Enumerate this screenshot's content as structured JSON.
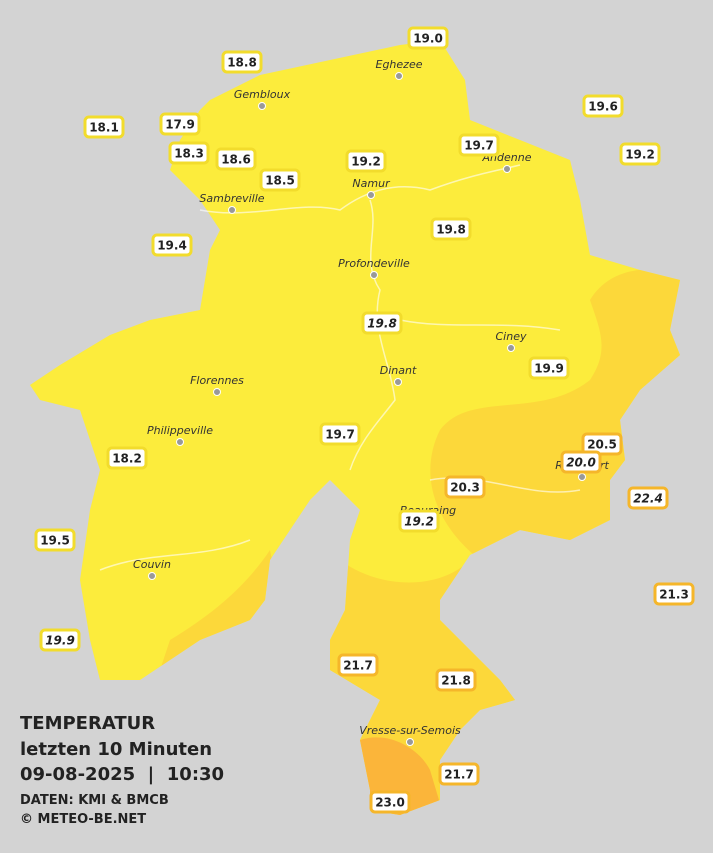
{
  "title": "TEMPERATUR",
  "subtitle": "letzten 10 Minuten",
  "datetime": "09-08-2025  |  10:30",
  "source": "DATEN: KMI & BMCB",
  "copyright": "© METEO-BE.NET",
  "towns": [
    "Eghezee",
    "Gembloux",
    "Andenne",
    "Namur",
    "Sambreville",
    "Profondeville",
    "Ciney",
    "Dinant",
    "Florennes",
    "Philippeville",
    "Beauraing",
    "Rochefort",
    "Couvin",
    "Vresse-sur-Semois"
  ],
  "readings": [
    {
      "label": "19.0"
    },
    {
      "label": "18.8"
    },
    {
      "label": "19.6"
    },
    {
      "label": "18.1"
    },
    {
      "label": "17.9"
    },
    {
      "label": "19.7"
    },
    {
      "label": "18.3"
    },
    {
      "label": "18.6"
    },
    {
      "label": "19.2"
    },
    {
      "label": "19.2"
    },
    {
      "label": "18.5"
    },
    {
      "label": "19.4"
    },
    {
      "label": "19.8"
    },
    {
      "label": "19.8",
      "italic": true
    },
    {
      "label": "19.9"
    },
    {
      "label": "19.7"
    },
    {
      "label": "20.5"
    },
    {
      "label": "20.0",
      "italic": true
    },
    {
      "label": "18.2"
    },
    {
      "label": "20.3"
    },
    {
      "label": "22.4",
      "italic": true
    },
    {
      "label": "19.2",
      "italic": true
    },
    {
      "label": "19.5"
    },
    {
      "label": "21.3"
    },
    {
      "label": "19.9",
      "italic": true
    },
    {
      "label": "21.7"
    },
    {
      "label": "21.8"
    },
    {
      "label": "21.7"
    },
    {
      "label": "23.0"
    }
  ]
}
